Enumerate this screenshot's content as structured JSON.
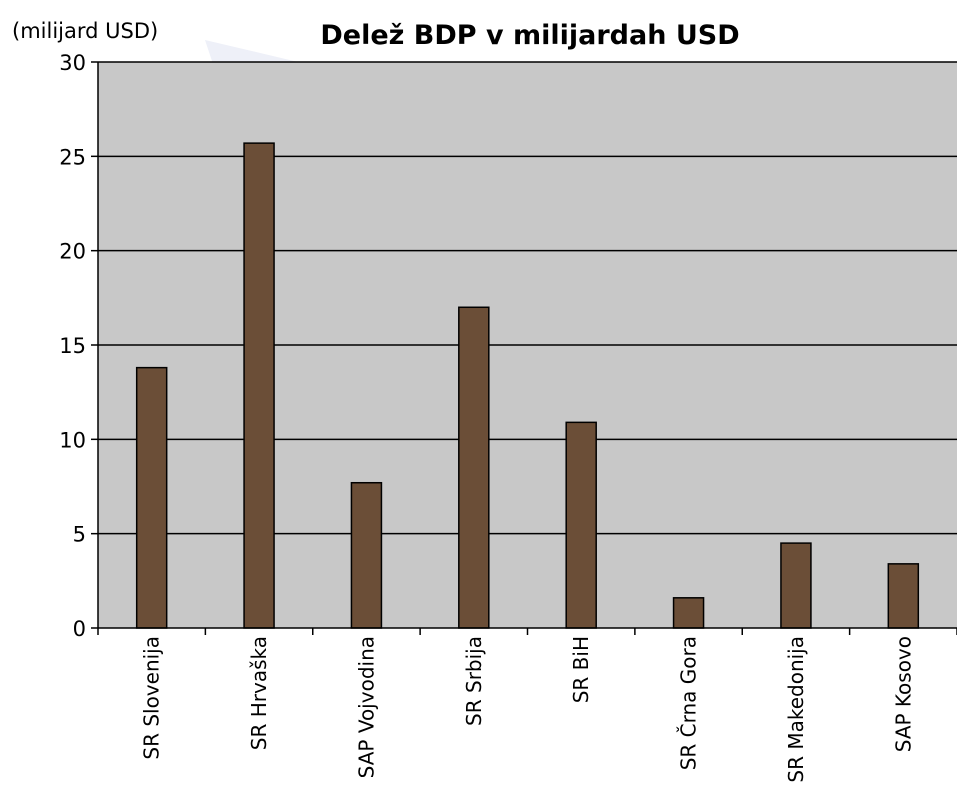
{
  "chart_data": {
    "type": "bar",
    "title": "Delež BDP v milijardah USD",
    "unit_label": "(milijard USD)",
    "xlabel": "",
    "ylabel": "",
    "ylim": [
      0,
      30
    ],
    "yticks": [
      0,
      5,
      10,
      15,
      20,
      25,
      30
    ],
    "grid": true,
    "categories": [
      "SR Slovenija",
      "SR Hrvaška",
      "SAP Vojvodina",
      "SR Srbija",
      "SR BiH",
      "SR Črna Gora",
      "SR Makedonija",
      "SAP Kosovo"
    ],
    "values": [
      13.8,
      25.7,
      7.7,
      17.0,
      10.9,
      1.6,
      4.5,
      3.4
    ]
  },
  "colors": {
    "plot_background": "#c8c8c8",
    "bar_fill": "#6b4e37",
    "bar_stroke": "#000000",
    "gridline": "#000000",
    "watermark": "#eef0f8"
  }
}
